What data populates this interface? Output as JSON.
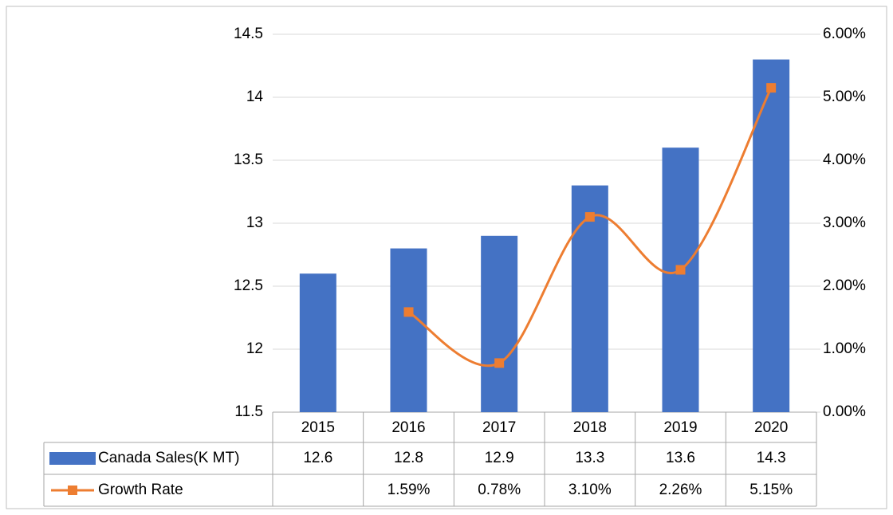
{
  "chart_data": {
    "type": "bar-line",
    "categories": [
      "2015",
      "2016",
      "2017",
      "2018",
      "2019",
      "2020"
    ],
    "series": [
      {
        "name": "Canada Sales(K MT)",
        "type": "bar",
        "color": "#4472c4",
        "values": [
          12.6,
          12.8,
          12.9,
          13.3,
          13.6,
          14.3
        ]
      },
      {
        "name": "Growth Rate",
        "type": "line",
        "axis": "y2",
        "color": "#ed7d31",
        "smooth": true,
        "marker": "square",
        "values": [
          null,
          1.59,
          0.78,
          3.1,
          2.26,
          5.15
        ],
        "value_labels": [
          null,
          "1.59%",
          "0.78%",
          "3.10%",
          "2.26%",
          "5.15%"
        ]
      }
    ],
    "ylim": [
      11.5,
      14.5
    ],
    "yticks": [
      11.5,
      12,
      12.5,
      13,
      13.5,
      14,
      14.5
    ],
    "y2lim": [
      0,
      6
    ],
    "y2ticks": [
      {
        "value": 0,
        "label": "0.00%"
      },
      {
        "value": 1,
        "label": "1.00%"
      },
      {
        "value": 2,
        "label": "2.00%"
      },
      {
        "value": 3,
        "label": "3.00%"
      },
      {
        "value": 4,
        "label": "4.00%"
      },
      {
        "value": 5,
        "label": "5.00%"
      },
      {
        "value": 6,
        "label": "6.00%"
      }
    ],
    "grid": true,
    "data_table": true
  }
}
